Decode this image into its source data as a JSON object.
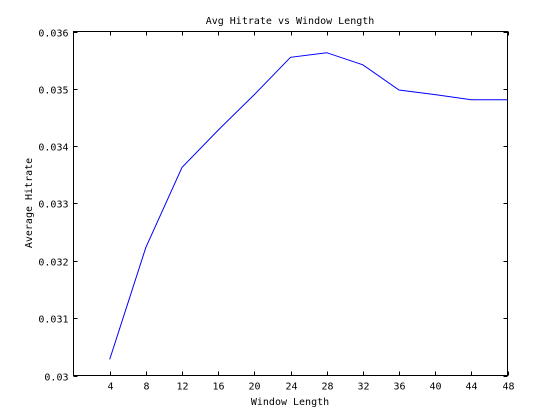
{
  "chart_data": {
    "type": "line",
    "title": "Avg Hitrate vs Window Length",
    "xlabel": "Window Length",
    "ylabel": "Average Hitrate",
    "xlim": [
      0,
      48
    ],
    "ylim": [
      0.03,
      0.036
    ],
    "xticks": [
      4,
      8,
      12,
      16,
      20,
      24,
      28,
      32,
      36,
      40,
      44,
      48
    ],
    "yticks": [
      0.03,
      0.031,
      0.032,
      0.033,
      0.034,
      0.035,
      0.036
    ],
    "ytick_labels": [
      "0.03",
      "0.031",
      "0.032",
      "0.033",
      "0.034",
      "0.035",
      "0.036"
    ],
    "grid": false,
    "series": [
      {
        "color": "#0000ff",
        "x": [
          4,
          8,
          12,
          16,
          20,
          24,
          28,
          32,
          36,
          40,
          44,
          46,
          48
        ],
        "y": [
          0.03028,
          0.03223,
          0.03363,
          0.03428,
          0.0349,
          0.03555,
          0.03563,
          0.03542,
          0.03498,
          0.0349,
          0.03481,
          0.03481,
          0.03481
        ]
      }
    ]
  }
}
